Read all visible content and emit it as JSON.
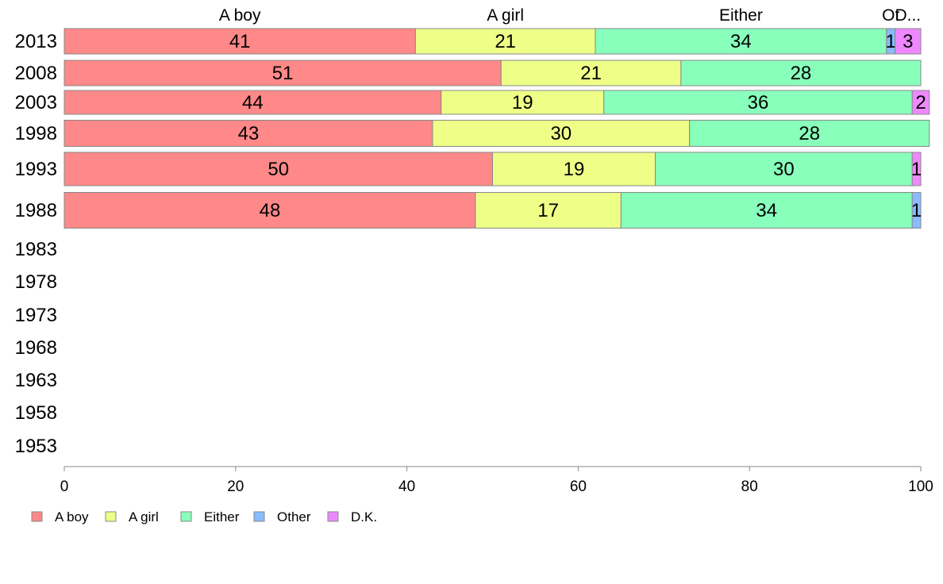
{
  "chart_data": {
    "type": "bar",
    "orientation": "horizontal",
    "stacked": true,
    "categories": [
      "2013",
      "2008",
      "2003",
      "1998",
      "1993",
      "1988",
      "1983",
      "1978",
      "1973",
      "1968",
      "1963",
      "1958",
      "1953"
    ],
    "series": [
      {
        "name": "A boy",
        "header": "A boy",
        "color": "#ff8888",
        "values": [
          41,
          51,
          44,
          43,
          50,
          48,
          null,
          null,
          null,
          null,
          null,
          null,
          null
        ]
      },
      {
        "name": "A girl",
        "header": "A girl",
        "color": "#eeff88",
        "values": [
          21,
          21,
          19,
          30,
          19,
          17,
          null,
          null,
          null,
          null,
          null,
          null,
          null
        ]
      },
      {
        "name": "Either",
        "header": "Either",
        "color": "#88ffbb",
        "values": [
          34,
          28,
          36,
          28,
          30,
          34,
          null,
          null,
          null,
          null,
          null,
          null,
          null
        ]
      },
      {
        "name": "Other",
        "header": "Ot",
        "color": "#88bbff",
        "values": [
          1,
          0,
          0,
          0,
          0,
          1,
          null,
          null,
          null,
          null,
          null,
          null,
          null
        ]
      },
      {
        "name": "D.K.",
        "header": "D...",
        "color": "#ee88ff",
        "values": [
          3,
          0,
          2,
          0,
          1,
          0,
          null,
          null,
          null,
          null,
          null,
          null,
          null
        ]
      }
    ],
    "xlim": [
      0,
      100
    ],
    "xticks": [
      0,
      20,
      40,
      60,
      80,
      100
    ],
    "grid": false,
    "legend_position": "bottom-left"
  }
}
